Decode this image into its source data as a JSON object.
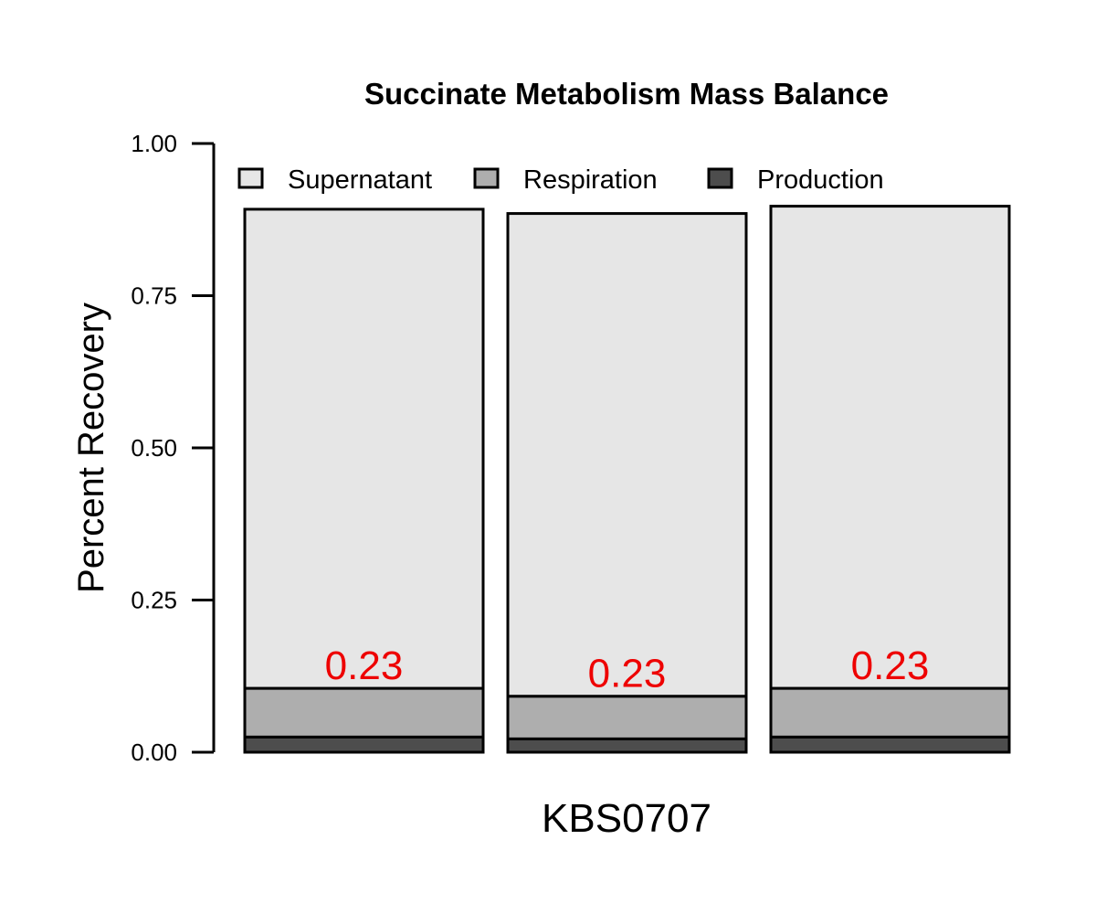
{
  "chart_data": {
    "type": "bar",
    "stacked": true,
    "title": "Succinate Metabolism Mass Balance",
    "ylabel": "Percent Recovery",
    "xlabel": "KBS0707",
    "ylim": [
      0,
      1
    ],
    "yticks": [
      "0.00",
      "0.25",
      "0.50",
      "0.75",
      "1.00"
    ],
    "grid": false,
    "legend_position": "top",
    "bars": 3,
    "series": [
      {
        "name": "Production",
        "color": "#4d4d4d",
        "values": [
          0.025,
          0.022,
          0.025
        ]
      },
      {
        "name": "Respiration",
        "color": "#aeaeae",
        "values": [
          0.08,
          0.07,
          0.08
        ]
      },
      {
        "name": "Supernatant",
        "color": "#e6e6e6",
        "values": [
          0.787,
          0.793,
          0.792
        ]
      }
    ],
    "legend": [
      "Supernatant",
      "Respiration",
      "Production"
    ],
    "annotations": [
      "0.23",
      "0.23",
      "0.23"
    ],
    "annotation_color": "#ee0000"
  }
}
